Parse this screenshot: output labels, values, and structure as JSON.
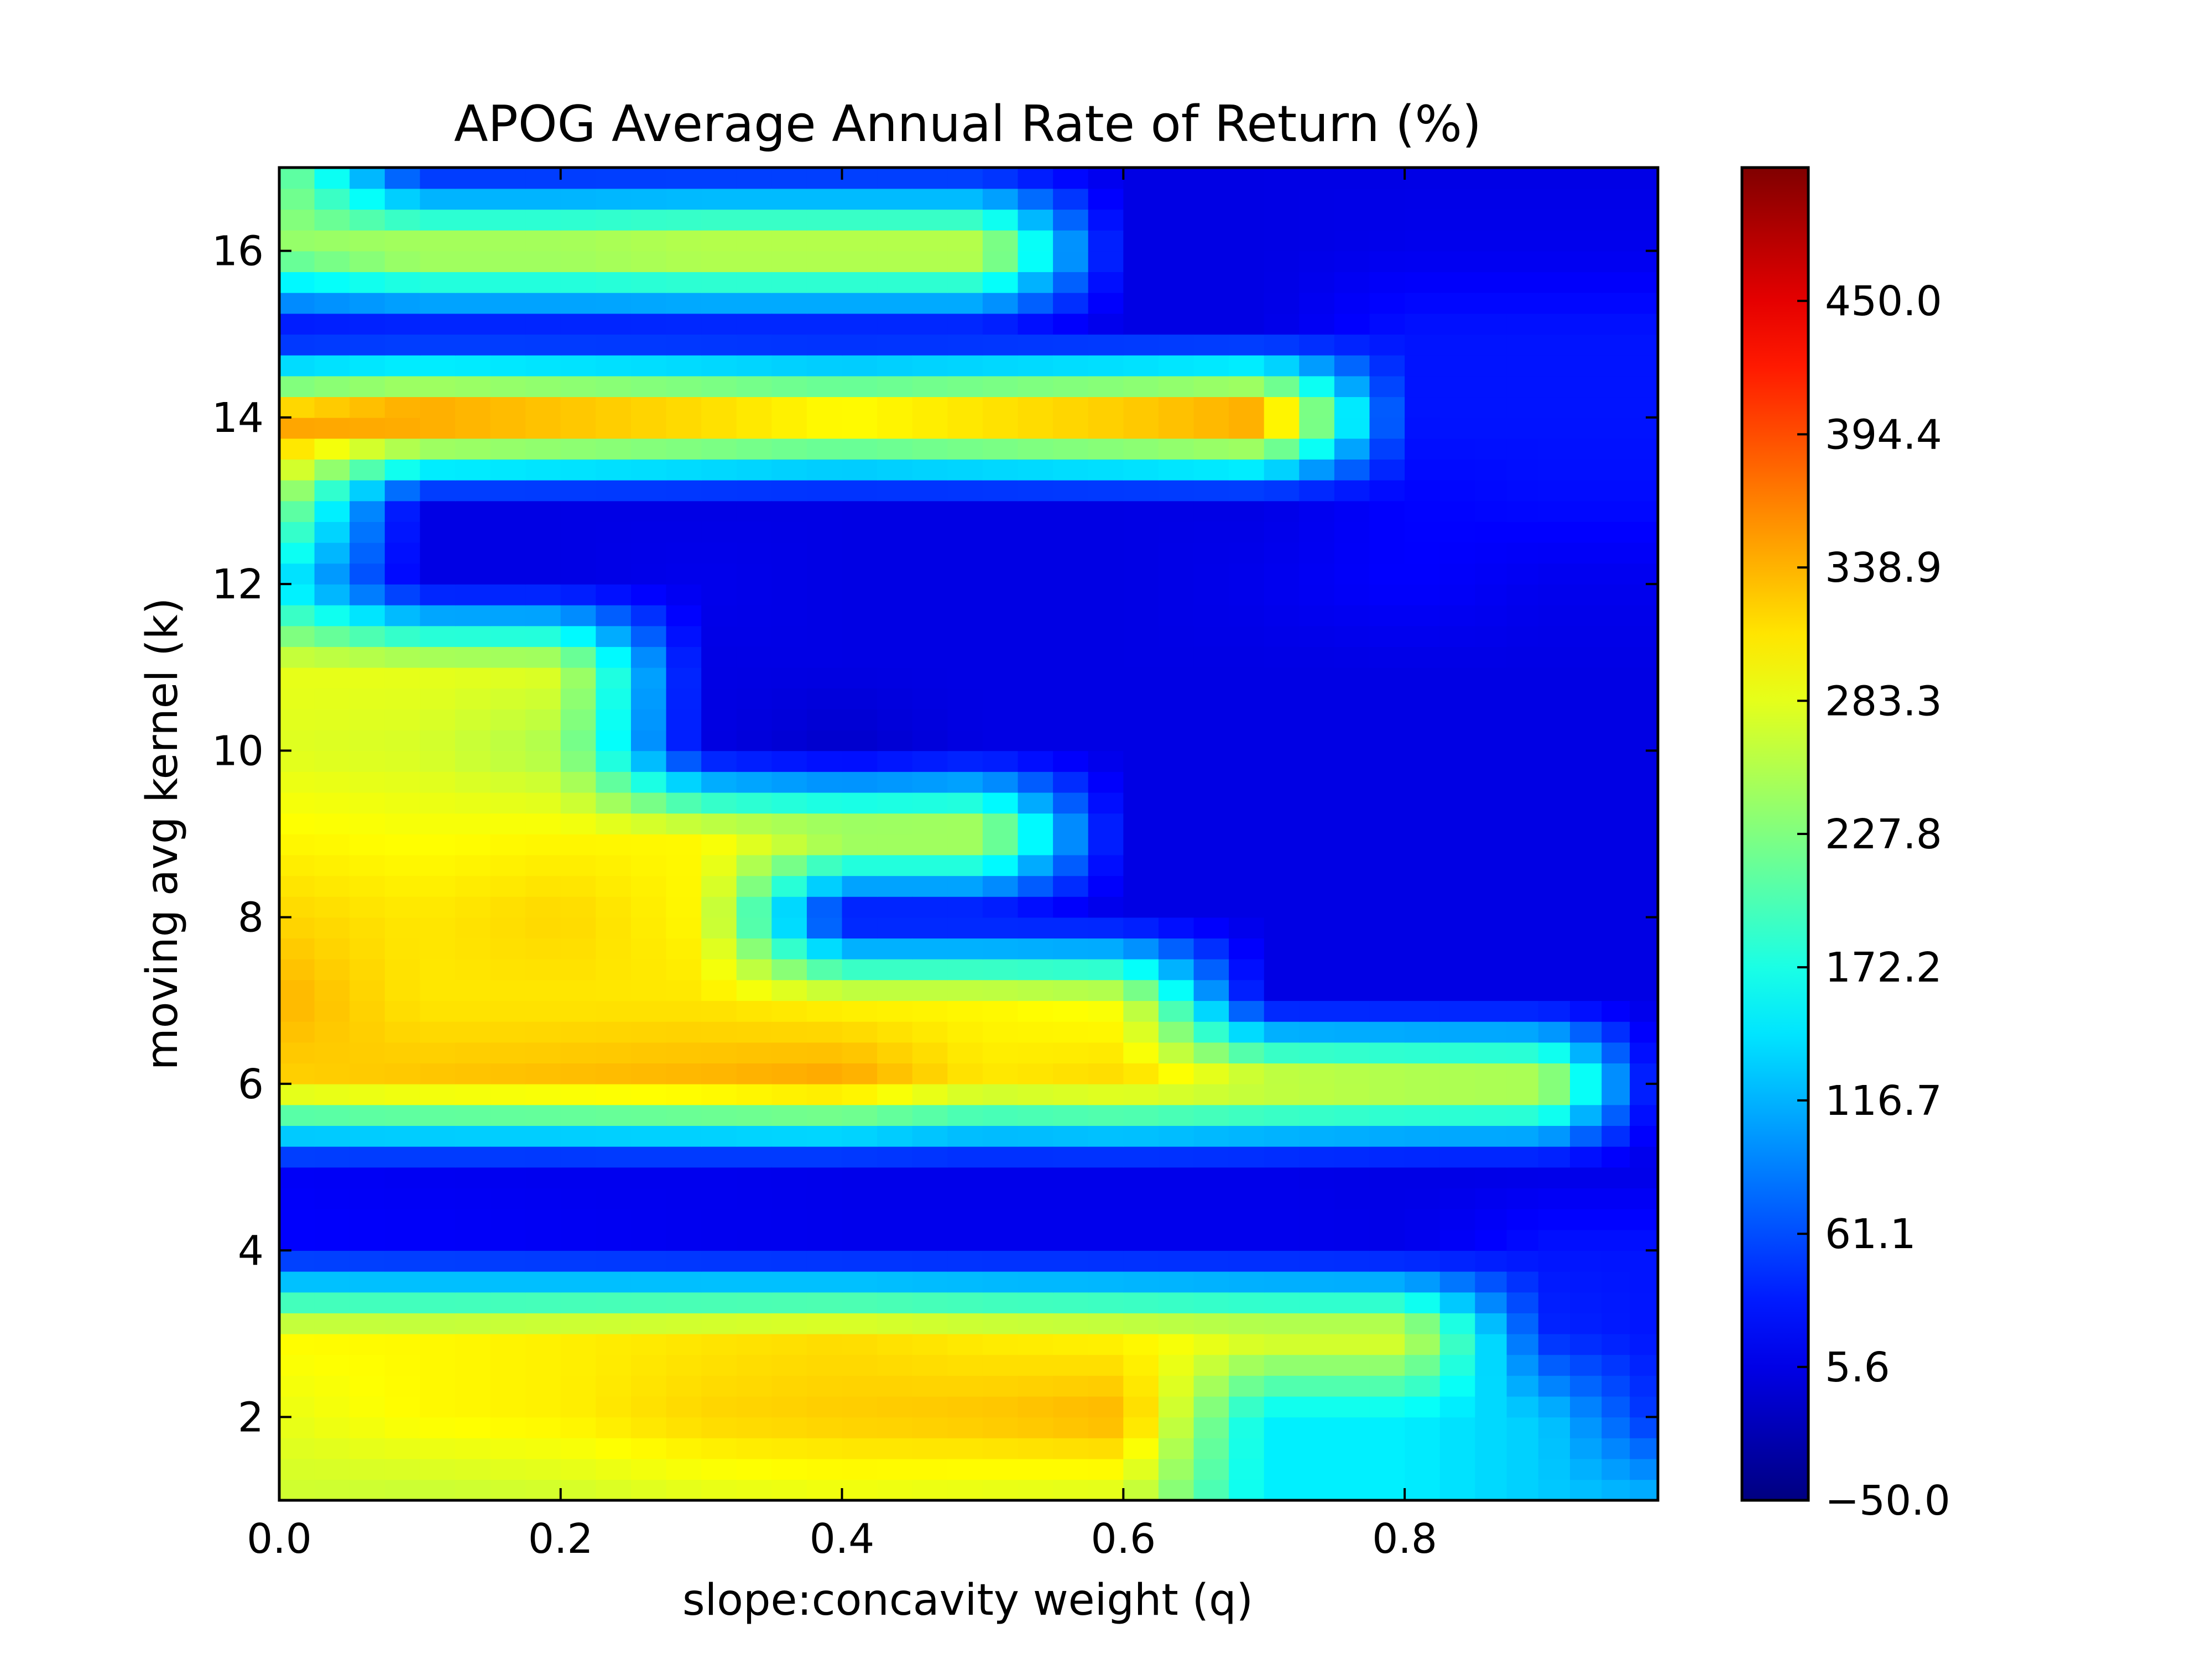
{
  "chart_data": {
    "type": "heatmap",
    "title": "APOG Average Annual Rate of Return (%)",
    "xlabel": "slope:concavity weight (q)",
    "ylabel": "moving avg kernel (k)",
    "xlim": [
      0.0,
      0.98
    ],
    "ylim": [
      1,
      17
    ],
    "x_ticks": [
      0.0,
      0.2,
      0.4,
      0.6,
      0.8
    ],
    "x_tick_labels": [
      "0.0",
      "0.2",
      "0.4",
      "0.6",
      "0.8"
    ],
    "y_ticks": [
      2,
      4,
      6,
      8,
      10,
      12,
      14,
      16
    ],
    "y_tick_labels": [
      "2",
      "4",
      "6",
      "8",
      "10",
      "12",
      "14",
      "16"
    ],
    "colorscale": "jet",
    "vmin": -50.0,
    "vmax": 505.6,
    "colorbar_ticks": [
      -50.0,
      5.6,
      61.1,
      116.7,
      172.2,
      227.8,
      283.3,
      338.9,
      394.4,
      450.0
    ],
    "colorbar_tick_labels": [
      "−50.0",
      "5.6",
      "61.1",
      "116.7",
      "172.2",
      "227.8",
      "283.3",
      "338.9",
      "394.4",
      "450.0"
    ],
    "x": [
      0.0,
      0.1,
      0.2,
      0.3,
      0.4,
      0.5,
      0.6,
      0.7,
      0.8,
      0.9,
      0.98
    ],
    "y": [
      1,
      2,
      3,
      4,
      5,
      6,
      7,
      8,
      9,
      10,
      11,
      12,
      13,
      14,
      15,
      16,
      17
    ],
    "z": [
      [
        270,
        265,
        270,
        280,
        285,
        280,
        275,
        150,
        150,
        130,
        120
      ],
      [
        285,
        300,
        305,
        320,
        325,
        330,
        340,
        150,
        150,
        130,
        40
      ],
      [
        300,
        300,
        305,
        310,
        315,
        305,
        300,
        290,
        290,
        40,
        30
      ],
      [
        20,
        18,
        15,
        12,
        10,
        10,
        10,
        10,
        8,
        30,
        30
      ],
      [
        15,
        12,
        10,
        10,
        8,
        8,
        8,
        8,
        5,
        5,
        5
      ],
      [
        320,
        330,
        335,
        340,
        350,
        310,
        320,
        300,
        290,
        285,
        5
      ],
      [
        340,
        310,
        310,
        310,
        300,
        300,
        290,
        5,
        5,
        5,
        5
      ],
      [
        320,
        310,
        320,
        300,
        5,
        5,
        5,
        5,
        5,
        5,
        5
      ],
      [
        300,
        295,
        300,
        300,
        280,
        280,
        5,
        5,
        5,
        5,
        5
      ],
      [
        280,
        275,
        250,
        5,
        -10,
        5,
        5,
        5,
        5,
        5,
        5
      ],
      [
        285,
        285,
        280,
        5,
        5,
        5,
        5,
        5,
        5,
        5,
        5
      ],
      [
        150,
        5,
        5,
        10,
        5,
        5,
        5,
        10,
        20,
        10,
        10
      ],
      [
        250,
        5,
        5,
        5,
        5,
        5,
        5,
        5,
        20,
        25,
        25
      ],
      [
        360,
        390,
        375,
        360,
        340,
        355,
        370,
        390,
        30,
        30,
        30
      ],
      [
        5,
        5,
        5,
        5,
        5,
        5,
        5,
        5,
        30,
        30,
        30
      ],
      [
        240,
        280,
        280,
        290,
        290,
        290,
        5,
        5,
        10,
        10,
        10
      ],
      [
        230,
        20,
        20,
        20,
        20,
        20,
        5,
        5,
        5,
        5,
        5
      ]
    ]
  }
}
